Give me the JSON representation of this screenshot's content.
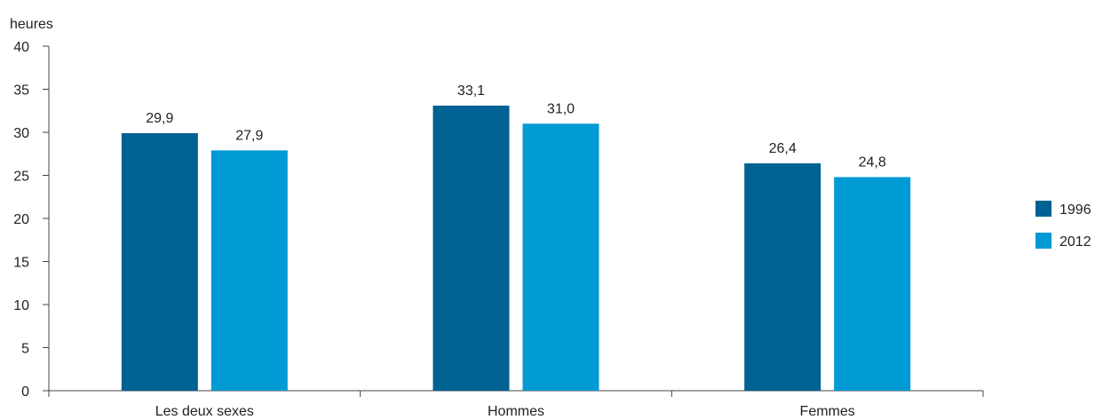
{
  "chart_data": {
    "type": "bar",
    "ylabel": "heures",
    "xlabel": "",
    "ylim": [
      0,
      40
    ],
    "yticks": [
      "0",
      "5",
      "10",
      "15",
      "20",
      "25",
      "30",
      "35",
      "40"
    ],
    "categories": [
      "Les deux sexes",
      "Hommes",
      "Femmes"
    ],
    "series": [
      {
        "name": "1996",
        "color": "#006193",
        "values": [
          29.9,
          33.1,
          26.4
        ],
        "labels": [
          "29,9",
          "33,1",
          "26,4"
        ]
      },
      {
        "name": "2012",
        "color": "#009ad5",
        "values": [
          27.9,
          31.0,
          24.8
        ],
        "labels": [
          "27,9",
          "31,0",
          "24,8"
        ]
      }
    ],
    "legend_position": "right",
    "grid": false
  }
}
